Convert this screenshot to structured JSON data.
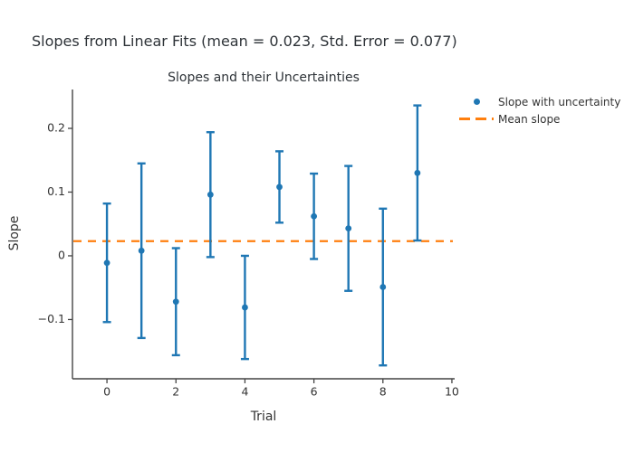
{
  "figure": {
    "title": "Slopes from Linear Fits (mean = 0.023, Std. Error = 0.077)"
  },
  "chart_data": {
    "type": "scatter",
    "subtitle": "Slopes and their Uncertainties",
    "xlabel": "Trial",
    "ylabel": "Slope",
    "x": [
      0,
      1,
      2,
      3,
      4,
      5,
      6,
      7,
      8,
      9
    ],
    "slopes": [
      -0.011,
      0.008,
      -0.072,
      0.096,
      -0.081,
      0.108,
      0.062,
      0.043,
      -0.049,
      0.13
    ],
    "errors": [
      0.093,
      0.137,
      0.084,
      0.098,
      0.081,
      0.056,
      0.067,
      0.098,
      0.123,
      0.106
    ],
    "mean_slope": 0.023,
    "std_error": 0.077,
    "xlim": [
      -1.0,
      10.08
    ],
    "ylim": [
      -0.193,
      0.261
    ],
    "xticks": [
      0,
      2,
      4,
      6,
      8,
      10
    ],
    "yticks": [
      -0.1,
      0,
      0.1,
      0.2
    ],
    "grid": false,
    "legend": {
      "position": "outside-top-right",
      "items": [
        {
          "label": "Slope with uncertainty",
          "type": "marker"
        },
        {
          "label": "Mean slope",
          "type": "dash"
        }
      ]
    },
    "colors": {
      "points": "#1f77b4",
      "mean_line": "#ff7f0e",
      "axis": "#444444",
      "text": "#333333"
    }
  }
}
